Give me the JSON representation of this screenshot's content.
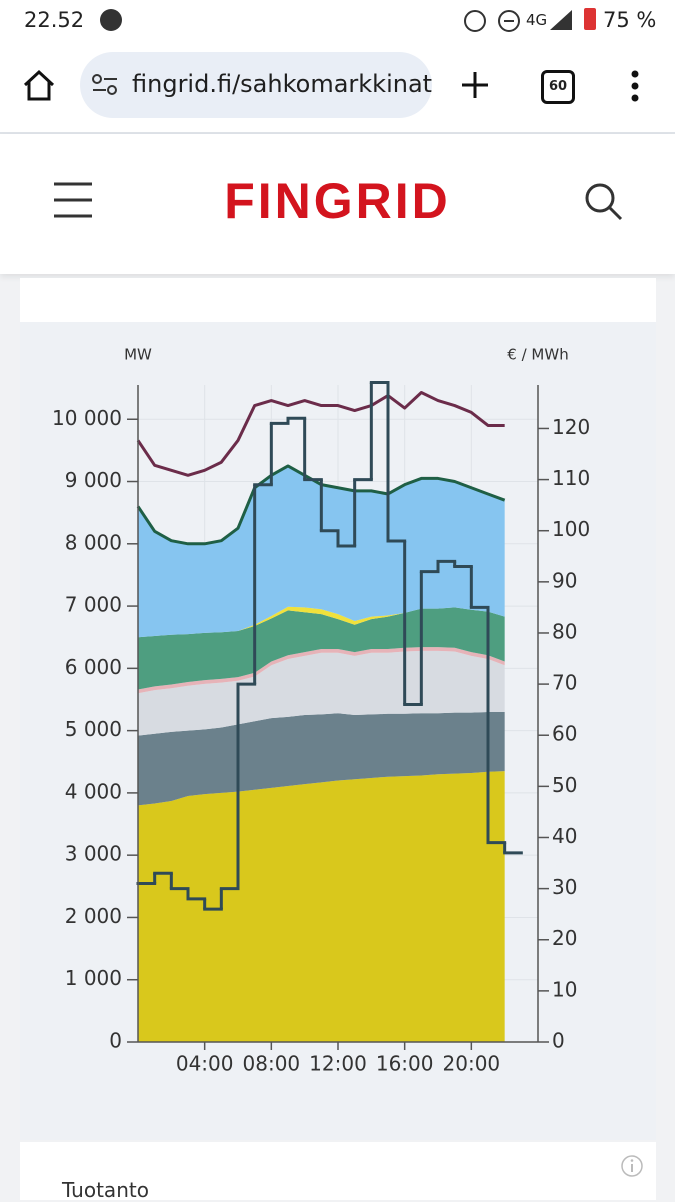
{
  "status_bar": {
    "time": "22.52",
    "network": "4G",
    "battery": "75 %"
  },
  "browser": {
    "url": "fingrid.fi/sahkomarkkinat",
    "tab_count": "60"
  },
  "header": {
    "logo": "FINGRID"
  },
  "chart_data": {
    "type": "area",
    "y_label": "MW",
    "y2_label": "€ / MWh",
    "x": [
      0,
      1,
      2,
      3,
      4,
      5,
      6,
      7,
      8,
      9,
      10,
      11,
      12,
      13,
      14,
      15,
      16,
      17,
      18,
      19,
      20,
      21,
      22
    ],
    "xlim": [
      0,
      24
    ],
    "xticks": [
      {
        "value": 4,
        "label": "04:00"
      },
      {
        "value": 8,
        "label": "08:00"
      },
      {
        "value": 12,
        "label": "12:00"
      },
      {
        "value": 16,
        "label": "16:00"
      },
      {
        "value": 20,
        "label": "20:00"
      }
    ],
    "ylim": [
      0,
      10550
    ],
    "yticks": [
      0,
      {
        "value": 1000,
        "label": "1 000"
      },
      {
        "value": 2000,
        "label": "2 000"
      },
      {
        "value": 3000,
        "label": "3 000"
      },
      {
        "value": 4000,
        "label": "4 000"
      },
      {
        "value": 5000,
        "label": "5 000"
      },
      {
        "value": 6000,
        "label": "6 000"
      },
      {
        "value": 7000,
        "label": "7 000"
      },
      {
        "value": 8000,
        "label": "8 000"
      },
      {
        "value": 9000,
        "label": "9 000"
      },
      {
        "value": 10000,
        "label": "10 000"
      }
    ],
    "y2lim": [
      0,
      128.5
    ],
    "y2ticks": [
      0,
      10,
      20,
      30,
      40,
      50,
      60,
      70,
      80,
      90,
      100,
      110,
      120
    ],
    "grid": true,
    "series": [
      {
        "type": "area",
        "color": "#d9c81c",
        "values": [
          3800,
          3830,
          3870,
          3950,
          3980,
          4000,
          4020,
          4050,
          4080,
          4110,
          4140,
          4170,
          4200,
          4220,
          4240,
          4260,
          4270,
          4280,
          4300,
          4310,
          4320,
          4340,
          4350
        ]
      },
      {
        "type": "area",
        "color": "#6b818c",
        "values": [
          1120,
          1120,
          1110,
          1050,
          1040,
          1050,
          1080,
          1100,
          1120,
          1110,
          1110,
          1090,
          1080,
          1030,
          1020,
          1010,
          1000,
          1000,
          980,
          980,
          970,
          960,
          950
        ]
      },
      {
        "type": "area",
        "color": "#d7dbe1",
        "values": [
          680,
          700,
          700,
          720,
          730,
          720,
          700,
          720,
          850,
          930,
          950,
          990,
          970,
          950,
          990,
          980,
          1000,
          1000,
          1000,
          980,
          910,
          850,
          750
        ]
      },
      {
        "type": "area",
        "color": "#e6b3b8",
        "values": [
          60,
          60,
          60,
          60,
          60,
          60,
          60,
          60,
          60,
          60,
          60,
          60,
          60,
          60,
          60,
          60,
          60,
          60,
          60,
          60,
          60,
          60,
          60
        ]
      },
      {
        "type": "area",
        "color": "#4e9e80",
        "values": [
          840,
          810,
          800,
          770,
          760,
          750,
          740,
          750,
          690,
          720,
          640,
          560,
          480,
          440,
          480,
          520,
          560,
          620,
          620,
          650,
          680,
          700,
          720
        ]
      },
      {
        "type": "area",
        "color": "#f0e13c",
        "values": [
          0,
          0,
          0,
          0,
          0,
          0,
          0,
          20,
          40,
          60,
          80,
          80,
          80,
          60,
          40,
          20,
          0,
          0,
          0,
          0,
          0,
          0,
          0
        ]
      },
      {
        "type": "area",
        "color": "#86c5f0",
        "values": [
          2100,
          1680,
          1510,
          1450,
          1430,
          1470,
          1650,
          2200,
          2260,
          2260,
          2120,
          2000,
          2030,
          2090,
          2020,
          1950,
          2060,
          2090,
          2090,
          2020,
          1960,
          1890,
          1870
        ]
      },
      {
        "type": "line",
        "color": "#1f5f45",
        "values": [
          8600,
          8200,
          8050,
          8000,
          8000,
          8050,
          8250,
          8900,
          9100,
          9250,
          9100,
          8950,
          8900,
          8850,
          8850,
          8800,
          8950,
          9050,
          9050,
          9000,
          8900,
          8800,
          8700
        ]
      },
      {
        "type": "line",
        "color": "#6b2c4a",
        "values": [
          9660,
          9260,
          9180,
          9100,
          9180,
          9310,
          9660,
          10220,
          10300,
          10220,
          10300,
          10220,
          10220,
          10140,
          10220,
          10380,
          10180,
          10430,
          10300,
          10220,
          10110,
          9900,
          9900
        ]
      },
      {
        "type": "step",
        "axis": "y2",
        "color": "#2f4a57",
        "values": [
          31,
          33,
          30,
          28,
          26,
          30,
          70,
          109,
          121,
          122,
          110,
          100,
          97,
          110,
          129,
          98,
          66,
          92,
          94,
          93,
          85,
          39,
          37
        ]
      }
    ]
  },
  "section": {
    "title": "Tuotanto"
  }
}
